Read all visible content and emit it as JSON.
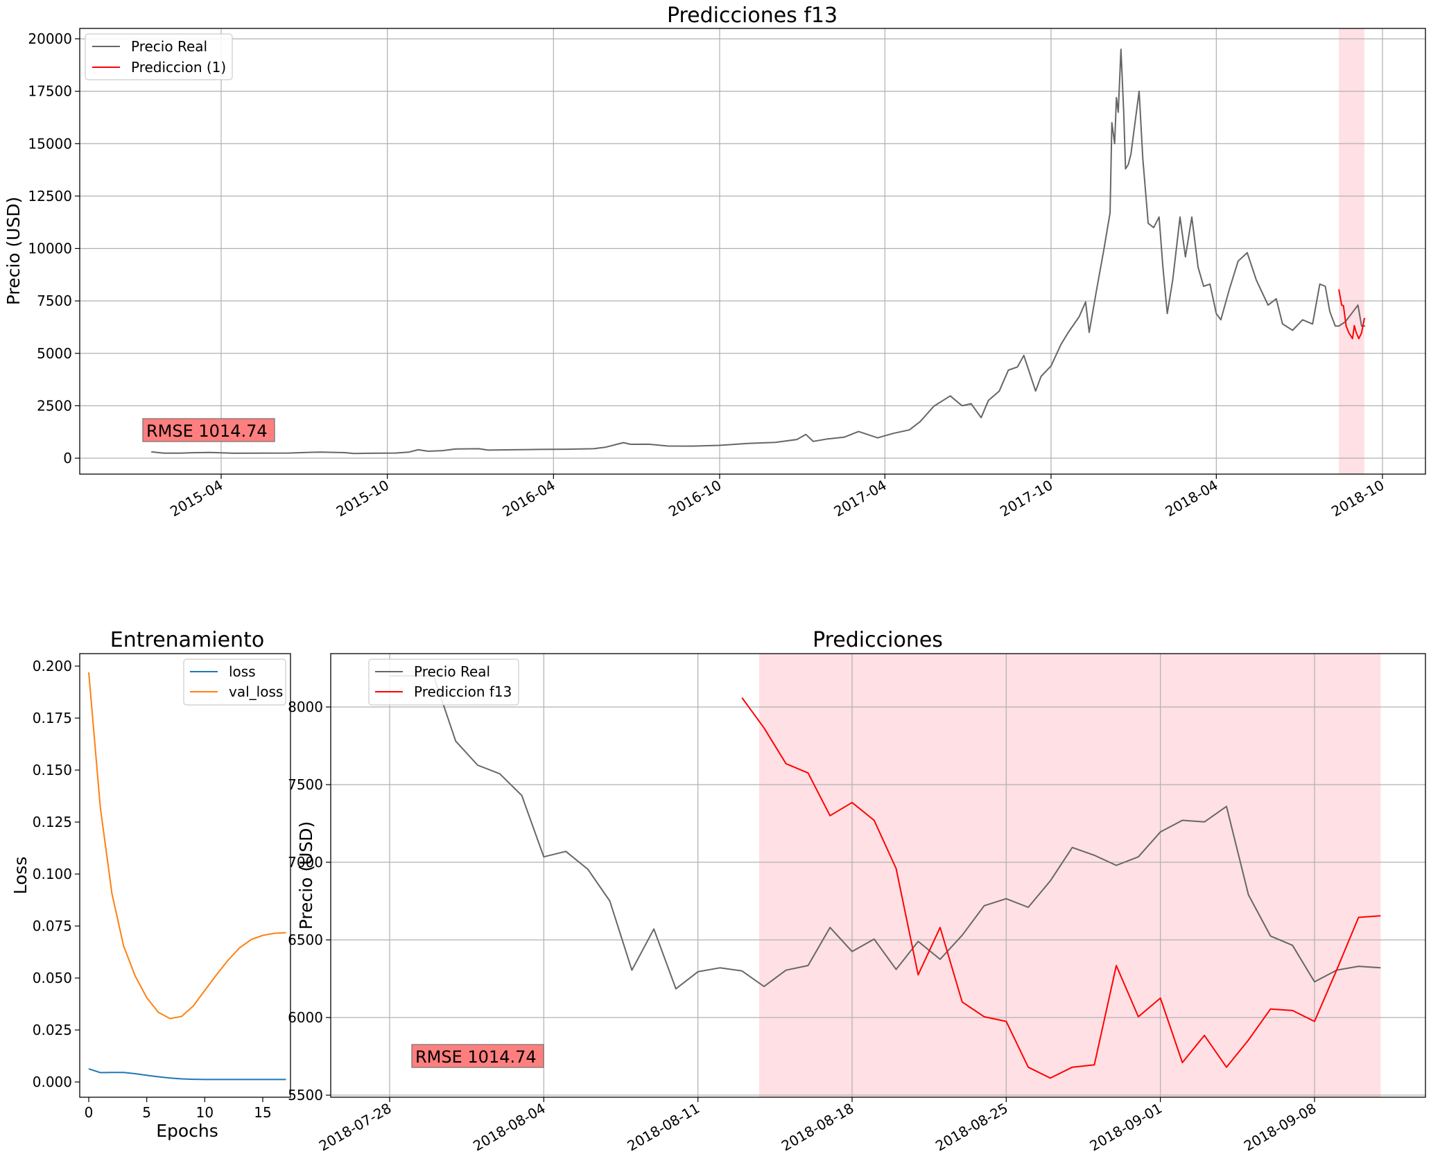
{
  "colors": {
    "real": "#666666",
    "pred": "#ff0000",
    "loss": "#1f77b4",
    "val_loss": "#ff7f0e",
    "span": "#ffe0e4",
    "rmse_box": "#ff7f7f"
  },
  "chart_data": [
    {
      "id": "top",
      "type": "line",
      "title": "Predicciones f13",
      "ylabel": "Precio (USD)",
      "xlabel": "",
      "x_ticks": [
        "2015-04",
        "2015-10",
        "2016-04",
        "2016-10",
        "2017-04",
        "2017-10",
        "2018-04",
        "2018-10"
      ],
      "y_ticks": [
        "0",
        "2500",
        "5000",
        "7500",
        "10000",
        "12500",
        "15000",
        "17500",
        "20000"
      ],
      "ylim": [
        -750,
        20450
      ],
      "xlim": [
        "2015-01-01",
        "2018-10-31"
      ],
      "grid": true,
      "legend": {
        "position": "top-left",
        "entries": [
          "Precio Real",
          "Prediccion (1)"
        ]
      },
      "annotation": "RMSE  1014.74",
      "highlight_span": [
        "2018-08-14",
        "2018-09-11"
      ],
      "series": [
        {
          "name": "Precio Real",
          "points": [
            [
              "2015-01-14",
              300
            ],
            [
              "2015-01-28",
              240
            ],
            [
              "2015-02-15",
              240
            ],
            [
              "2015-03-01",
              260
            ],
            [
              "2015-03-20",
              270
            ],
            [
              "2015-04-15",
              235
            ],
            [
              "2015-05-15",
              240
            ],
            [
              "2015-06-15",
              245
            ],
            [
              "2015-07-10",
              280
            ],
            [
              "2015-07-20",
              290
            ],
            [
              "2015-08-15",
              265
            ],
            [
              "2015-08-25",
              220
            ],
            [
              "2015-09-15",
              235
            ],
            [
              "2015-10-10",
              245
            ],
            [
              "2015-10-25",
              290
            ],
            [
              "2015-11-04",
              400
            ],
            [
              "2015-11-15",
              330
            ],
            [
              "2015-12-01",
              360
            ],
            [
              "2015-12-15",
              440
            ],
            [
              "2016-01-10",
              450
            ],
            [
              "2016-01-20",
              385
            ],
            [
              "2016-02-15",
              400
            ],
            [
              "2016-03-15",
              415
            ],
            [
              "2016-04-15",
              425
            ],
            [
              "2016-05-15",
              450
            ],
            [
              "2016-05-28",
              520
            ],
            [
              "2016-06-17",
              740
            ],
            [
              "2016-06-25",
              660
            ],
            [
              "2016-07-15",
              665
            ],
            [
              "2016-08-05",
              580
            ],
            [
              "2016-09-01",
              575
            ],
            [
              "2016-10-01",
              610
            ],
            [
              "2016-11-01",
              700
            ],
            [
              "2016-12-01",
              750
            ],
            [
              "2016-12-25",
              890
            ],
            [
              "2017-01-04",
              1130
            ],
            [
              "2017-01-12",
              800
            ],
            [
              "2017-01-28",
              920
            ],
            [
              "2017-02-15",
              1000
            ],
            [
              "2017-03-03",
              1270
            ],
            [
              "2017-03-24",
              970
            ],
            [
              "2017-04-10",
              1180
            ],
            [
              "2017-04-28",
              1350
            ],
            [
              "2017-05-10",
              1750
            ],
            [
              "2017-05-25",
              2480
            ],
            [
              "2017-06-12",
              2970
            ],
            [
              "2017-06-25",
              2500
            ],
            [
              "2017-07-05",
              2600
            ],
            [
              "2017-07-16",
              1930
            ],
            [
              "2017-07-24",
              2750
            ],
            [
              "2017-08-05",
              3200
            ],
            [
              "2017-08-15",
              4200
            ],
            [
              "2017-08-25",
              4350
            ],
            [
              "2017-09-01",
              4900
            ],
            [
              "2017-09-14",
              3200
            ],
            [
              "2017-09-20",
              3900
            ],
            [
              "2017-10-01",
              4400
            ],
            [
              "2017-10-12",
              5430
            ],
            [
              "2017-10-20",
              6000
            ],
            [
              "2017-11-01",
              6750
            ],
            [
              "2017-11-08",
              7450
            ],
            [
              "2017-11-12",
              6000
            ],
            [
              "2017-11-20",
              8000
            ],
            [
              "2017-11-28",
              9900
            ],
            [
              "2017-12-05",
              11700
            ],
            [
              "2017-12-07",
              16000
            ],
            [
              "2017-12-10",
              15000
            ],
            [
              "2017-12-12",
              17200
            ],
            [
              "2017-12-14",
              16500
            ],
            [
              "2017-12-17",
              19500
            ],
            [
              "2017-12-20",
              16500
            ],
            [
              "2017-12-22",
              13800
            ],
            [
              "2017-12-25",
              14000
            ],
            [
              "2017-12-28",
              14500
            ],
            [
              "2018-01-06",
              17500
            ],
            [
              "2018-01-10",
              14300
            ],
            [
              "2018-01-16",
              11200
            ],
            [
              "2018-01-22",
              11000
            ],
            [
              "2018-01-28",
              11500
            ],
            [
              "2018-02-01",
              9200
            ],
            [
              "2018-02-06",
              6900
            ],
            [
              "2018-02-12",
              8500
            ],
            [
              "2018-02-20",
              11500
            ],
            [
              "2018-02-26",
              9600
            ],
            [
              "2018-03-05",
              11500
            ],
            [
              "2018-03-12",
              9100
            ],
            [
              "2018-03-18",
              8200
            ],
            [
              "2018-03-25",
              8300
            ],
            [
              "2018-04-01",
              6900
            ],
            [
              "2018-04-06",
              6600
            ],
            [
              "2018-04-15",
              8000
            ],
            [
              "2018-04-25",
              9400
            ],
            [
              "2018-05-05",
              9800
            ],
            [
              "2018-05-15",
              8500
            ],
            [
              "2018-05-28",
              7300
            ],
            [
              "2018-06-06",
              7600
            ],
            [
              "2018-06-13",
              6400
            ],
            [
              "2018-06-24",
              6100
            ],
            [
              "2018-07-05",
              6600
            ],
            [
              "2018-07-16",
              6400
            ],
            [
              "2018-07-24",
              8300
            ],
            [
              "2018-07-30",
              8200
            ],
            [
              "2018-08-04",
              7000
            ],
            [
              "2018-08-10",
              6300
            ],
            [
              "2018-08-14",
              6300
            ],
            [
              "2018-08-21",
              6500
            ],
            [
              "2018-08-28",
              6900
            ],
            [
              "2018-09-04",
              7300
            ],
            [
              "2018-09-08",
              6300
            ],
            [
              "2018-09-12",
              6300
            ]
          ]
        },
        {
          "name": "Prediccion (1)",
          "points": [
            [
              "2018-08-14",
              8050
            ],
            [
              "2018-08-17",
              7300
            ],
            [
              "2018-08-19",
              7270
            ],
            [
              "2018-08-22",
              6300
            ],
            [
              "2018-08-25",
              5980
            ],
            [
              "2018-08-29",
              5700
            ],
            [
              "2018-08-31",
              6320
            ],
            [
              "2018-09-02",
              6000
            ],
            [
              "2018-09-05",
              5700
            ],
            [
              "2018-09-08",
              5980
            ],
            [
              "2018-09-11",
              6650
            ],
            [
              "2018-09-12",
              6660
            ]
          ]
        }
      ]
    },
    {
      "id": "train",
      "type": "line",
      "title": "Entrenamiento",
      "xlabel": "Epochs",
      "ylabel": "Loss",
      "x_ticks": [
        "0",
        "5",
        "10",
        "15"
      ],
      "y_ticks": [
        "0.000",
        "0.025",
        "0.050",
        "0.075",
        "0.100",
        "0.125",
        "0.150",
        "0.175",
        "0.200"
      ],
      "xlim": [
        -0.85,
        17.85
      ],
      "ylim": [
        -0.0087,
        0.2066
      ],
      "grid": false,
      "legend": {
        "position": "top-right",
        "entries": [
          "loss",
          "val_loss"
        ]
      },
      "series": [
        {
          "name": "loss",
          "x": [
            0,
            1,
            2,
            3,
            4,
            5,
            6,
            7,
            8,
            9,
            10,
            11,
            12,
            13,
            14,
            15,
            16,
            17
          ],
          "values": [
            0.0063,
            0.0045,
            0.0046,
            0.0046,
            0.004,
            0.0032,
            0.0025,
            0.0019,
            0.0015,
            0.0013,
            0.0012,
            0.0012,
            0.0012,
            0.0012,
            0.0012,
            0.0012,
            0.0012,
            0.0012
          ]
        },
        {
          "name": "val_loss",
          "x": [
            0,
            1,
            2,
            3,
            4,
            5,
            6,
            7,
            8,
            9,
            10,
            11,
            12,
            13,
            14,
            15,
            16,
            17
          ],
          "values": [
            0.197,
            0.132,
            0.0905,
            0.0655,
            0.051,
            0.0405,
            0.0335,
            0.0305,
            0.0315,
            0.0365,
            0.044,
            0.0515,
            0.0585,
            0.0645,
            0.0685,
            0.0705,
            0.0715,
            0.0718
          ]
        }
      ]
    },
    {
      "id": "zoom",
      "type": "line",
      "title": "Predicciones",
      "ylabel": "Precio (USD)",
      "xlabel": "",
      "x_ticks": [
        "2018-07-28",
        "2018-08-04",
        "2018-08-11",
        "2018-08-18",
        "2018-08-25",
        "2018-09-01",
        "2018-09-08"
      ],
      "y_ticks": [
        "5500",
        "6000",
        "6500",
        "7000",
        "7500",
        "8000"
      ],
      "xlim": [
        "2018-07-24",
        "2018-09-16"
      ],
      "ylim": [
        5490,
        8340
      ],
      "grid": true,
      "legend": {
        "position": "top-left",
        "entries": [
          "Precio Real",
          "Prediccion f13"
        ]
      },
      "annotation": "RMSE  1014.74",
      "highlight_span": [
        "2018-08-14",
        "2018-09-11"
      ],
      "series": [
        {
          "name": "Precio Real",
          "dates": [
            "2018-07-28",
            "2018-07-29",
            "2018-07-30",
            "2018-07-31",
            "2018-08-01",
            "2018-08-02",
            "2018-08-03",
            "2018-08-04",
            "2018-08-05",
            "2018-08-06",
            "2018-08-07",
            "2018-08-08",
            "2018-08-09",
            "2018-08-10",
            "2018-08-11",
            "2018-08-12",
            "2018-08-13",
            "2018-08-14",
            "2018-08-15",
            "2018-08-16",
            "2018-08-17",
            "2018-08-18",
            "2018-08-19",
            "2018-08-20",
            "2018-08-21",
            "2018-08-22",
            "2018-08-23",
            "2018-08-24",
            "2018-08-25",
            "2018-08-26",
            "2018-08-27",
            "2018-08-28",
            "2018-08-29",
            "2018-08-30",
            "2018-08-31",
            "2018-09-01",
            "2018-09-02",
            "2018-09-03",
            "2018-09-04",
            "2018-09-05",
            "2018-09-06",
            "2018-09-07",
            "2018-09-08",
            "2018-09-09",
            "2018-09-10",
            "2018-09-11"
          ],
          "values": [
            8200,
            8200,
            8200,
            7780,
            7625,
            7570,
            7430,
            7035,
            7070,
            6955,
            6750,
            6305,
            6570,
            6185,
            6295,
            6320,
            6300,
            6200,
            6305,
            6335,
            6580,
            6425,
            6505,
            6310,
            6490,
            6375,
            6530,
            6720,
            6765,
            6710,
            6880,
            7095,
            7045,
            6980,
            7035,
            7195,
            7270,
            7260,
            7360,
            6790,
            6525,
            6465,
            6230,
            6305,
            6330,
            6320
          ]
        },
        {
          "name": "Prediccion f13",
          "dates": [
            "2018-08-13",
            "2018-08-14",
            "2018-08-15",
            "2018-08-16",
            "2018-08-17",
            "2018-08-18",
            "2018-08-19",
            "2018-08-20",
            "2018-08-21",
            "2018-08-22",
            "2018-08-23",
            "2018-08-24",
            "2018-08-25",
            "2018-08-26",
            "2018-08-27",
            "2018-08-28",
            "2018-08-29",
            "2018-08-30",
            "2018-08-31",
            "2018-09-01",
            "2018-09-02",
            "2018-09-03",
            "2018-09-04",
            "2018-09-05",
            "2018-09-06",
            "2018-09-07",
            "2018-09-08",
            "2018-09-09",
            "2018-09-10",
            "2018-09-11"
          ],
          "values": [
            8060,
            7865,
            7635,
            7575,
            7300,
            7385,
            7270,
            6960,
            6275,
            6580,
            6100,
            6005,
            5975,
            5680,
            5610,
            5680,
            5695,
            6335,
            6005,
            6125,
            5710,
            5885,
            5680,
            5855,
            6055,
            6045,
            5975,
            6305,
            6645,
            6655
          ]
        }
      ]
    }
  ]
}
